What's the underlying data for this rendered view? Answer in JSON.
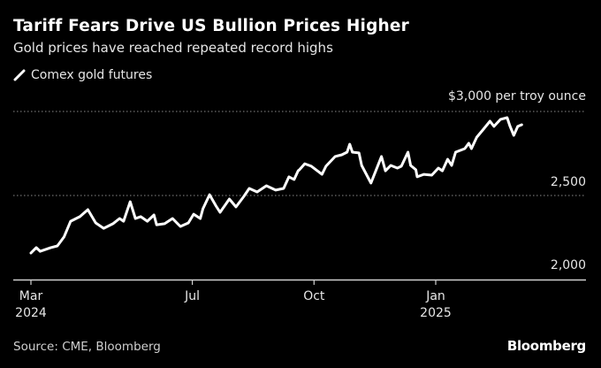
{
  "chart_data": {
    "type": "line",
    "title": "Tariff Fears Drive US Bullion Prices Higher",
    "subtitle": "Gold prices have reached repeated record highs",
    "series": [
      {
        "name": "Comex gold futures",
        "color": "#ffffff",
        "points": [
          [
            "2024-03-01",
            2158
          ],
          [
            "2024-03-05",
            2190
          ],
          [
            "2024-03-08",
            2168
          ],
          [
            "2024-03-16",
            2190
          ],
          [
            "2024-03-21",
            2200
          ],
          [
            "2024-03-26",
            2253
          ],
          [
            "2024-03-31",
            2347
          ],
          [
            "2024-04-07",
            2374
          ],
          [
            "2024-04-13",
            2416
          ],
          [
            "2024-04-19",
            2337
          ],
          [
            "2024-04-25",
            2305
          ],
          [
            "2024-05-02",
            2332
          ],
          [
            "2024-05-07",
            2363
          ],
          [
            "2024-05-10",
            2347
          ],
          [
            "2024-05-15",
            2463
          ],
          [
            "2024-05-19",
            2363
          ],
          [
            "2024-05-23",
            2374
          ],
          [
            "2024-05-28",
            2347
          ],
          [
            "2024-06-02",
            2384
          ],
          [
            "2024-06-04",
            2326
          ],
          [
            "2024-06-10",
            2332
          ],
          [
            "2024-06-16",
            2363
          ],
          [
            "2024-06-22",
            2316
          ],
          [
            "2024-06-28",
            2337
          ],
          [
            "2024-07-02",
            2389
          ],
          [
            "2024-07-07",
            2363
          ],
          [
            "2024-07-09",
            2421
          ],
          [
            "2024-07-14",
            2505
          ],
          [
            "2024-07-19",
            2437
          ],
          [
            "2024-07-22",
            2400
          ],
          [
            "2024-07-29",
            2479
          ],
          [
            "2024-08-03",
            2432
          ],
          [
            "2024-08-09",
            2495
          ],
          [
            "2024-08-13",
            2542
          ],
          [
            "2024-08-19",
            2521
          ],
          [
            "2024-08-26",
            2558
          ],
          [
            "2024-09-02",
            2532
          ],
          [
            "2024-09-08",
            2542
          ],
          [
            "2024-09-12",
            2611
          ],
          [
            "2024-09-16",
            2595
          ],
          [
            "2024-09-19",
            2647
          ],
          [
            "2024-09-20",
            2653
          ],
          [
            "2024-09-24",
            2689
          ],
          [
            "2024-09-29",
            2674
          ],
          [
            "2024-10-07",
            2626
          ],
          [
            "2024-10-10",
            2674
          ],
          [
            "2024-10-17",
            2732
          ],
          [
            "2024-10-22",
            2742
          ],
          [
            "2024-10-26",
            2758
          ],
          [
            "2024-10-28",
            2805
          ],
          [
            "2024-10-30",
            2758
          ],
          [
            "2024-11-04",
            2753
          ],
          [
            "2024-11-06",
            2679
          ],
          [
            "2024-11-13",
            2574
          ],
          [
            "2024-11-21",
            2732
          ],
          [
            "2024-11-24",
            2647
          ],
          [
            "2024-11-28",
            2679
          ],
          [
            "2024-12-03",
            2663
          ],
          [
            "2024-12-06",
            2674
          ],
          [
            "2024-12-11",
            2758
          ],
          [
            "2024-12-13",
            2679
          ],
          [
            "2024-12-17",
            2653
          ],
          [
            "2024-12-18",
            2611
          ],
          [
            "2024-12-23",
            2626
          ],
          [
            "2024-12-29",
            2621
          ],
          [
            "2025-01-03",
            2663
          ],
          [
            "2025-01-06",
            2647
          ],
          [
            "2025-01-10",
            2716
          ],
          [
            "2025-01-13",
            2679
          ],
          [
            "2025-01-16",
            2758
          ],
          [
            "2025-01-23",
            2779
          ],
          [
            "2025-01-26",
            2811
          ],
          [
            "2025-01-28",
            2779
          ],
          [
            "2025-02-01",
            2847
          ],
          [
            "2025-02-05",
            2884
          ],
          [
            "2025-02-11",
            2942
          ],
          [
            "2025-02-14",
            2911
          ],
          [
            "2025-02-19",
            2953
          ],
          [
            "2025-02-24",
            2963
          ],
          [
            "2025-02-26",
            2916
          ],
          [
            "2025-03-01",
            2858
          ],
          [
            "2025-03-04",
            2911
          ],
          [
            "2025-03-07",
            2921
          ]
        ]
      }
    ],
    "y_unit_label": "$3,000 per troy ounce",
    "ylim": [
      2000,
      3000
    ],
    "y_ticks": [
      {
        "value": 3000,
        "label": "$3,000 per troy ounce"
      },
      {
        "value": 2500,
        "label": "2,500"
      },
      {
        "value": 2000,
        "label": "2,000"
      }
    ],
    "x_ticks": [
      {
        "date": "2024-03-01",
        "label": "Mar",
        "year": "2024"
      },
      {
        "date": "2024-07-01",
        "label": "Jul",
        "year": ""
      },
      {
        "date": "2024-10-01",
        "label": "Oct",
        "year": ""
      },
      {
        "date": "2025-01-01",
        "label": "Jan",
        "year": "2025"
      }
    ],
    "grid": "horizontal dotted",
    "legend_position": "top-left",
    "source": "Source: CME, Bloomberg",
    "brand": "Bloomberg"
  }
}
